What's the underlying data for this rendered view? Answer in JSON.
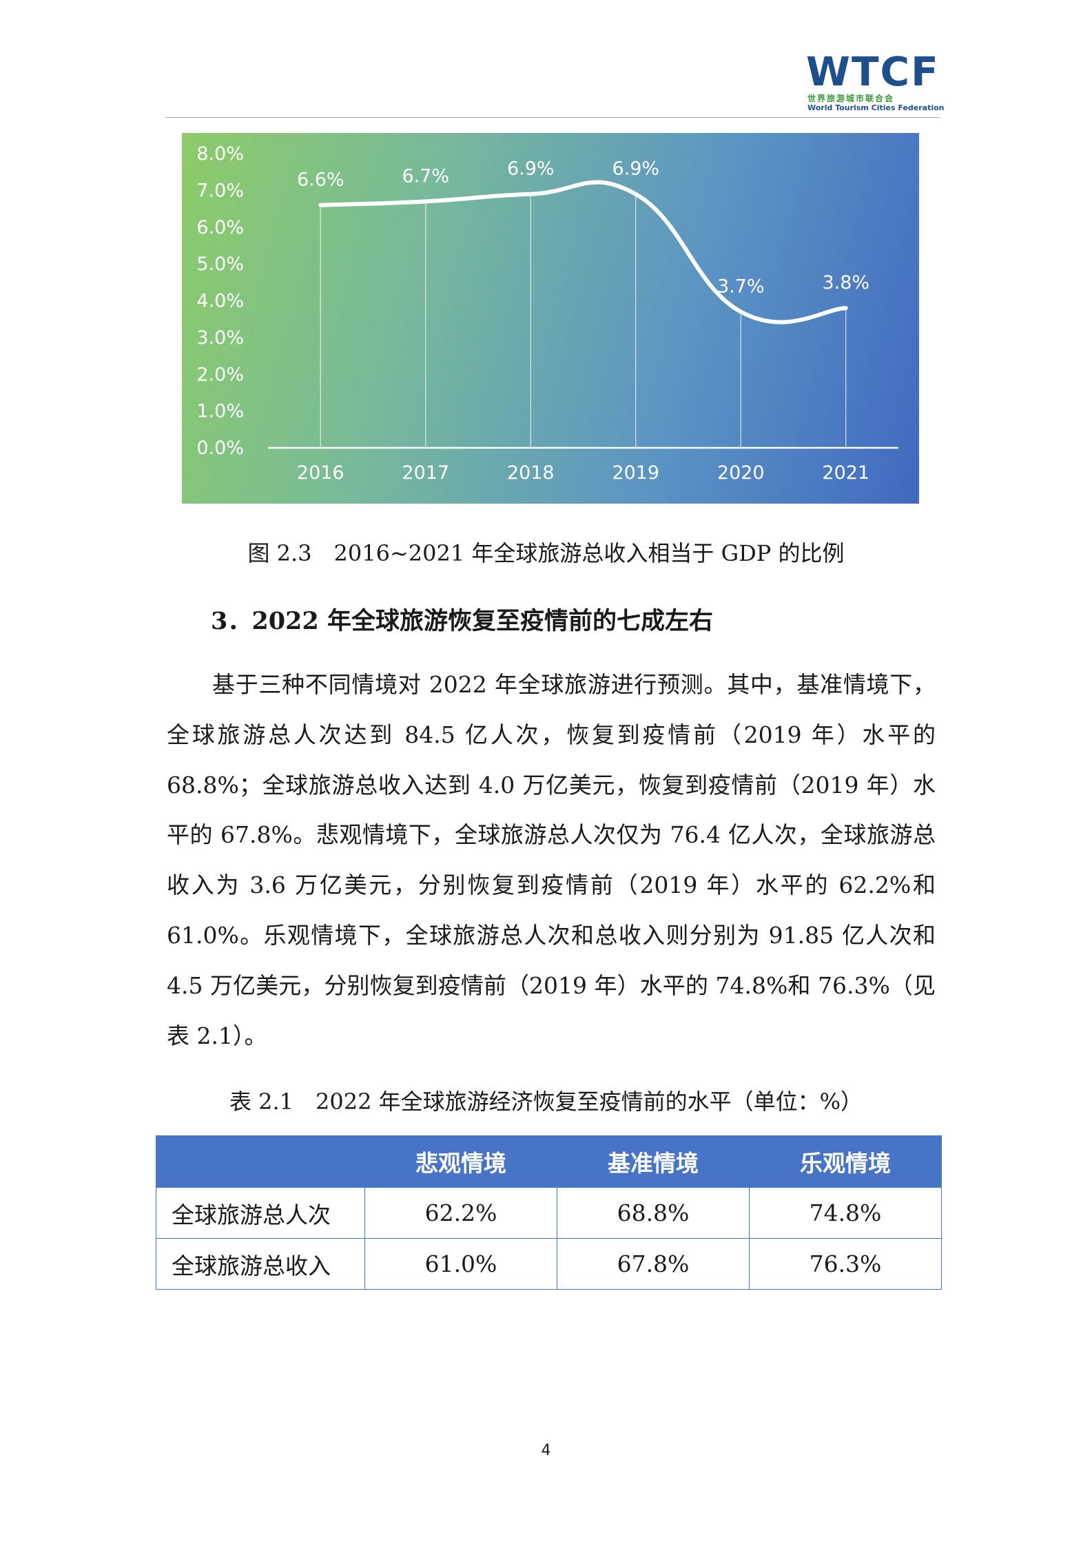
{
  "header": {
    "logo_text": "WTCF",
    "logo_cn": "世界旅游城市联合会",
    "logo_en": "World Tourism Cities Federation"
  },
  "chart_data": {
    "type": "line",
    "x": [
      "2016",
      "2017",
      "2018",
      "2019",
      "2020",
      "2021"
    ],
    "y": [
      6.6,
      6.7,
      6.9,
      6.9,
      3.7,
      3.8
    ],
    "data_labels": [
      "6.6%",
      "6.7%",
      "6.9%",
      "6.9%",
      "3.7%",
      "3.8%"
    ],
    "yticks": [
      "0.0%",
      "1.0%",
      "2.0%",
      "3.0%",
      "4.0%",
      "5.0%",
      "6.0%",
      "7.0%",
      "8.0%"
    ],
    "ylim": [
      0,
      8
    ],
    "grid": false,
    "colors": {
      "line": "#ffffff",
      "background_start": "#8ccc68",
      "background_end": "#4169c0"
    }
  },
  "figure": {
    "caption": "图 2.3　2016~2021 年全球旅游总收入相当于 GDP 的比例"
  },
  "section": {
    "heading": "3．2022 年全球旅游恢复至疫情前的七成左右",
    "paragraph": "基于三种不同情境对 2022 年全球旅游进行预测。其中，基准情境下，全球旅游总人次达到 84.5 亿人次，恢复到疫情前（2019 年）水平的 68.8%；全球旅游总收入达到 4.0 万亿美元，恢复到疫情前（2019 年）水平的 67.8%。悲观情境下，全球旅游总人次仅为 76.4 亿人次，全球旅游总收入为 3.6 万亿美元，分别恢复到疫情前（2019 年）水平的 62.2%和 61.0%。乐观情境下，全球旅游总人次和总收入则分别为 91.85 亿人次和 4.5 万亿美元，分别恢复到疫情前（2019 年）水平的 74.8%和 76.3%（见表 2.1）。"
  },
  "table": {
    "title": "表 2.1　2022 年全球旅游经济恢复至疫情前的水平（单位：%）",
    "header": [
      "",
      "悲观情境",
      "基准情境",
      "乐观情境"
    ],
    "rows": [
      [
        "全球旅游总人次",
        "62.2%",
        "68.8%",
        "74.8%"
      ],
      [
        "全球旅游总收入",
        "61.0%",
        "67.8%",
        "76.3%"
      ]
    ]
  },
  "page_number": "4"
}
